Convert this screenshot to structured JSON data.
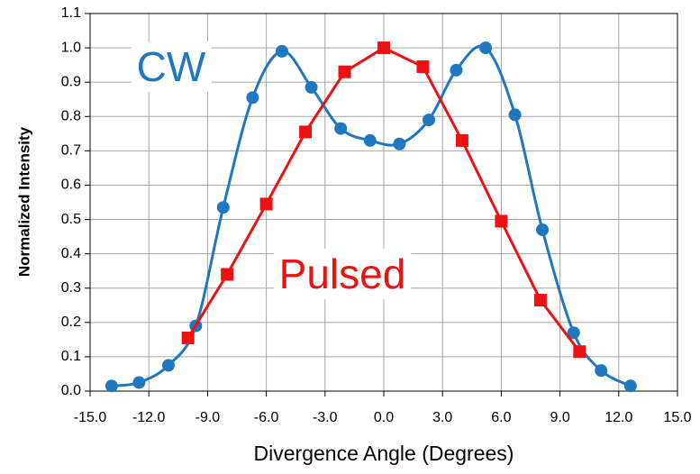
{
  "chart_data": {
    "type": "line",
    "x_label": "Divergence Angle (Degrees)",
    "y_label": "Normalized Intensity",
    "xlim": [
      -15,
      15
    ],
    "ylim": [
      0,
      1.1
    ],
    "xticks": [
      {
        "value": -15,
        "label": "-15.0"
      },
      {
        "value": -12,
        "label": "-12.0"
      },
      {
        "value": -9,
        "label": "-9.0"
      },
      {
        "value": -6,
        "label": "-6.0"
      },
      {
        "value": -3,
        "label": "-3.0"
      },
      {
        "value": 0,
        "label": "0.0"
      },
      {
        "value": 3,
        "label": "3.0"
      },
      {
        "value": 6,
        "label": "6.0"
      },
      {
        "value": 9,
        "label": "9.0"
      },
      {
        "value": 12,
        "label": "12.0"
      },
      {
        "value": 15,
        "label": "15.0"
      }
    ],
    "yticks": [
      {
        "value": 0,
        "label": "0.0"
      },
      0.1,
      0.2,
      0.3,
      0.4,
      0.5,
      0.6,
      0.7,
      0.8,
      0.9,
      {
        "value": 1,
        "label": "1.0"
      },
      1.1
    ],
    "grid": true,
    "series": [
      {
        "name": "CW",
        "color": "#1f77c0",
        "smooth": true,
        "marker": "circle",
        "x": [
          -13.9,
          -12.5,
          -11.0,
          -9.6,
          -8.2,
          -6.7,
          -5.2,
          -3.7,
          -2.2,
          -0.7,
          0.8,
          2.3,
          3.7,
          5.2,
          6.7,
          8.1,
          9.7,
          11.1,
          12.6
        ],
        "values": [
          0.015,
          0.025,
          0.075,
          0.19,
          0.535,
          0.855,
          0.99,
          0.885,
          0.765,
          0.73,
          0.72,
          0.79,
          0.935,
          1.0,
          0.805,
          0.47,
          0.17,
          0.06,
          0.015
        ]
      },
      {
        "name": "Pulsed",
        "color": "#ee1111",
        "smooth": false,
        "marker": "square",
        "x": [
          -10,
          -8,
          -6,
          -4,
          -2,
          0,
          2,
          4,
          6,
          8,
          10
        ],
        "values": [
          0.155,
          0.34,
          0.545,
          0.755,
          0.93,
          1.0,
          0.945,
          0.73,
          0.495,
          0.265,
          0.115
        ]
      }
    ]
  }
}
